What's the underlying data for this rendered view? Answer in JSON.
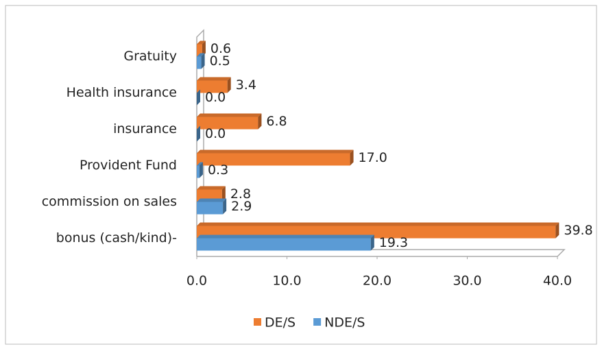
{
  "chart_data": {
    "type": "bar",
    "orientation": "horizontal",
    "categories": [
      "Gratuity",
      "Health insurance",
      "insurance",
      "Provident Fund",
      "commission on sales",
      "bonus (cash/kind)-"
    ],
    "series": [
      {
        "name": "DE/S",
        "color": "#ed7d31",
        "values": [
          0.6,
          3.4,
          6.8,
          17.0,
          2.8,
          39.8
        ],
        "value_labels": [
          "0.6",
          "3.4",
          "6.8",
          "17.0",
          "2.8",
          "39.8"
        ]
      },
      {
        "name": "NDE/S",
        "color": "#5b9bd5",
        "values": [
          0.5,
          0.0,
          0.0,
          0.3,
          2.9,
          19.3
        ],
        "value_labels": [
          "0.5",
          "0.0",
          "0.0",
          "0.3",
          "2.9",
          "19.3"
        ]
      }
    ],
    "xlim": [
      0,
      40
    ],
    "xticks": [
      {
        "value": 0,
        "label": "0.0"
      },
      {
        "value": 10,
        "label": "10.0"
      },
      {
        "value": 20,
        "label": "20.0"
      },
      {
        "value": 30,
        "label": "30.0"
      },
      {
        "value": 40,
        "label": "40.0"
      }
    ],
    "grid": false,
    "legend": "bottom"
  }
}
